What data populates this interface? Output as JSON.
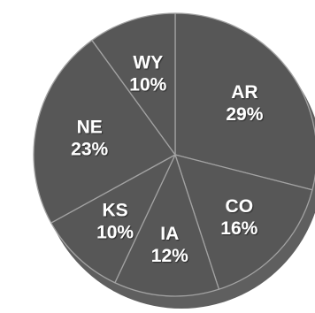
{
  "chart_data": {
    "type": "pie",
    "slices": [
      {
        "label": "AR",
        "value": 29,
        "display": "29%"
      },
      {
        "label": "CO",
        "value": 16,
        "display": "16%"
      },
      {
        "label": "IA",
        "value": 12,
        "display": "12%"
      },
      {
        "label": "KS",
        "value": 10,
        "display": "10%"
      },
      {
        "label": "NE",
        "value": 23,
        "display": "23%"
      },
      {
        "label": "WY",
        "value": 10,
        "display": "10%"
      }
    ],
    "start_angle_deg": 0,
    "direction": "clockwise",
    "legend": "none",
    "colors": {
      "slice_fill": "#575757",
      "slice_border": "#a2a2a2",
      "label_text": "#ffffff",
      "shadow": "#5f5f5f"
    }
  }
}
